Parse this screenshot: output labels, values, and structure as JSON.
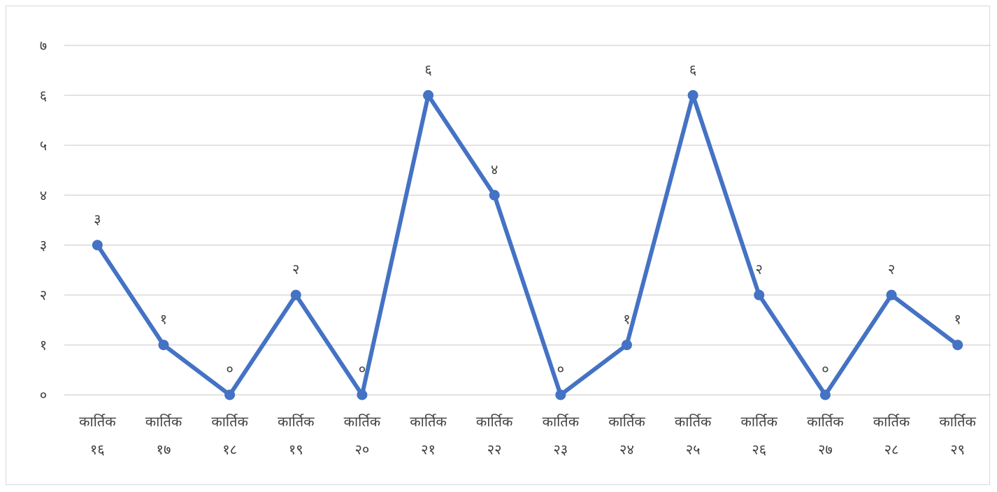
{
  "chart_data": {
    "type": "line",
    "categories": [
      [
        "कार्तिक",
        "१६"
      ],
      [
        "कार्तिक",
        "१७"
      ],
      [
        "कार्तिक",
        "१८"
      ],
      [
        "कार्तिक",
        "१९"
      ],
      [
        "कार्तिक",
        "२०"
      ],
      [
        "कार्तिक",
        "२१"
      ],
      [
        "कार्तिक",
        "२२"
      ],
      [
        "कार्तिक",
        "२३"
      ],
      [
        "कार्तिक",
        "२४"
      ],
      [
        "कार्तिक",
        "२५"
      ],
      [
        "कार्तिक",
        "२६"
      ],
      [
        "कार्तिक",
        "२७"
      ],
      [
        "कार्तिक",
        "२८"
      ],
      [
        "कार्तिक",
        "२९"
      ]
    ],
    "values": [
      3,
      1,
      0,
      2,
      0,
      6,
      4,
      0,
      1,
      6,
      2,
      0,
      2,
      1
    ],
    "data_labels": [
      "३",
      "१",
      "०",
      "२",
      "०",
      "६",
      "४",
      "०",
      "१",
      "६",
      "२",
      "०",
      "२",
      "१"
    ],
    "ylim": [
      0,
      7
    ],
    "yticks": [
      0,
      1,
      2,
      3,
      4,
      5,
      6,
      7
    ],
    "ytick_labels": [
      "०",
      "१",
      "२",
      "३",
      "४",
      "५",
      "६",
      "७"
    ],
    "grid": true,
    "legend": "none",
    "colors": {
      "line": "#4472c4",
      "grid": "#d9d9d9",
      "text": "#404040"
    }
  }
}
